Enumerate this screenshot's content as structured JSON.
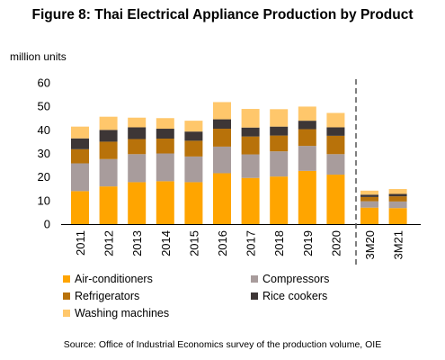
{
  "chart_data": {
    "type": "bar",
    "stacked": true,
    "title": "Figure 8: Thai Electrical Appliance Production by Product",
    "ylabel": "million units",
    "ylim": [
      0,
      60
    ],
    "yticks": [
      0,
      10,
      20,
      30,
      40,
      50,
      60
    ],
    "categories": [
      "2011",
      "2012",
      "2013",
      "2014",
      "2015",
      "2016",
      "2017",
      "2018",
      "2019",
      "2020",
      "3M20",
      "3M21"
    ],
    "separator_after": "2020",
    "series": [
      {
        "name": "Air-conditioners",
        "color": "#FFA500",
        "values": [
          14.0,
          16.0,
          17.8,
          18.2,
          17.8,
          21.6,
          19.6,
          20.2,
          22.6,
          21.0,
          7.0,
          6.8
        ]
      },
      {
        "name": "Compressors",
        "color": "#A89C9C",
        "values": [
          11.8,
          11.6,
          11.9,
          11.8,
          10.9,
          11.3,
          10.0,
          10.7,
          10.6,
          8.7,
          2.7,
          2.8
        ]
      },
      {
        "name": "Refrigerators",
        "color": "#B8720A",
        "values": [
          6.0,
          7.4,
          6.4,
          6.3,
          6.7,
          7.6,
          7.6,
          6.7,
          7.1,
          7.8,
          1.8,
          2.2
        ]
      },
      {
        "name": "Rice cookers",
        "color": "#3D3636",
        "values": [
          4.6,
          5.0,
          5.0,
          4.2,
          3.9,
          4.0,
          3.8,
          3.8,
          3.6,
          3.6,
          1.0,
          1.0
        ]
      },
      {
        "name": "Washing machines",
        "color": "#FFC76B",
        "values": [
          5.0,
          5.6,
          4.1,
          4.5,
          4.6,
          7.3,
          7.9,
          7.4,
          6.0,
          6.1,
          1.7,
          2.1
        ]
      }
    ]
  },
  "source": "Source:  Office of Industrial Economics survey of the production volume, OIE"
}
